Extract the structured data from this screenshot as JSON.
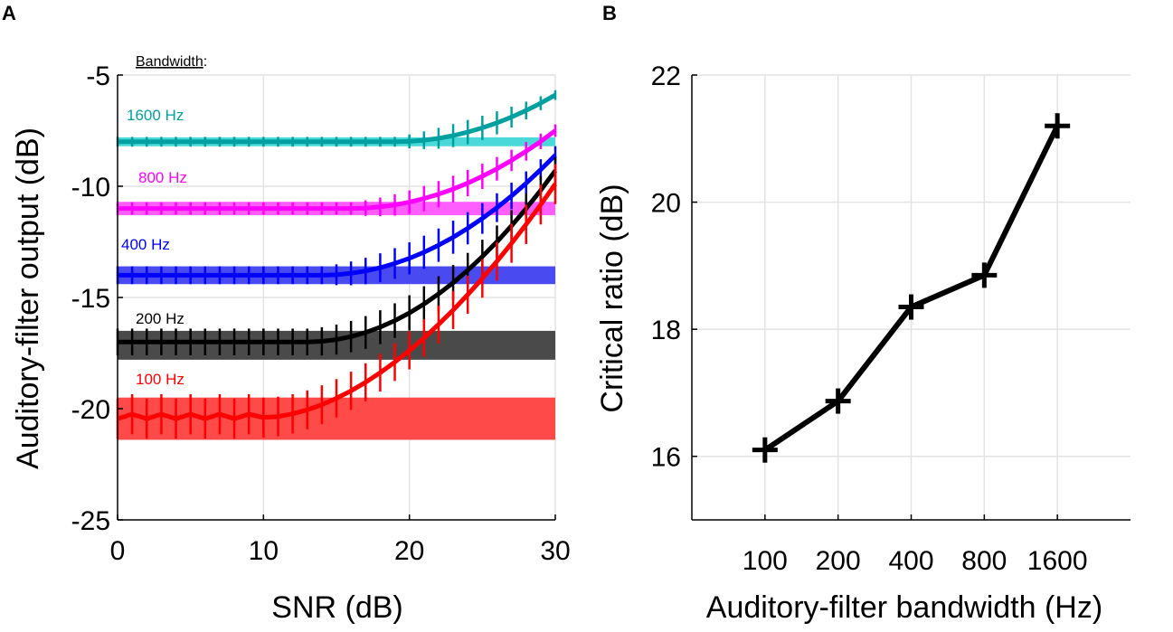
{
  "chart_data": [
    {
      "type": "line",
      "panel_label": "A",
      "xlabel": "SNR (dB)",
      "ylabel": "Auditory-filter output (dB)",
      "xlim": [
        0,
        30
      ],
      "ylim": [
        -25,
        -5
      ],
      "xticks": [
        0,
        10,
        20,
        30
      ],
      "xtick_labels": [
        "0",
        "10",
        "20",
        "30"
      ],
      "yticks": [
        -25,
        -20,
        -15,
        -10,
        -5
      ],
      "ytick_labels": [
        "-25",
        "-20",
        "-15",
        "-10",
        "-5"
      ],
      "grid": true,
      "legend_title": "Bandwidth",
      "legend_title_suffix": ":",
      "series": [
        {
          "name": "1600 Hz",
          "color": "#00A0A0",
          "band_color": "#40D6D6",
          "band_low": -8.2,
          "band_high": -7.8,
          "start": -8.0,
          "end": -5.9,
          "knee": 19,
          "power": 2,
          "err_small": 0.22,
          "err_large": 0.55
        },
        {
          "name": "800 Hz",
          "color": "#FF00FF",
          "band_color": "#FF55FF",
          "band_low": -11.3,
          "band_high": -10.7,
          "start": -11.0,
          "end": -7.5,
          "knee": 16,
          "power": 2,
          "err_small": 0.28,
          "err_large": 0.6
        },
        {
          "name": "400 Hz",
          "color": "#0000FF",
          "band_color": "#4040F0",
          "band_low": -14.4,
          "band_high": -13.6,
          "start": -14.0,
          "end": -8.6,
          "knee": 14,
          "power": 2,
          "err_small": 0.4,
          "err_large": 0.75
        },
        {
          "name": "200 Hz",
          "color": "#000000",
          "band_color": "#404040",
          "band_low": -17.8,
          "band_high": -16.5,
          "start": -17.0,
          "end": -9.3,
          "knee": 13,
          "power": 2,
          "err_small": 0.6,
          "err_large": 0.8
        },
        {
          "name": "100 Hz",
          "color": "#FF0000",
          "band_color": "#FF4040",
          "band_low": -21.4,
          "band_high": -19.5,
          "start": -20.4,
          "end": -9.9,
          "knee": 10,
          "power": 1.8,
          "err_small": 0.9,
          "err_large": 0.85
        }
      ]
    },
    {
      "type": "line",
      "panel_label": "B",
      "xlabel": "Auditory-filter bandwidth (Hz)",
      "ylabel": "Critical ratio (dB)",
      "categories": [
        "100",
        "200",
        "400",
        "800",
        "1600"
      ],
      "values": [
        16.1,
        16.87,
        18.35,
        18.85,
        21.2
      ],
      "xlim": [
        0,
        6
      ],
      "ylim": [
        15,
        22
      ],
      "yticks": [
        16,
        18,
        20,
        22
      ],
      "ytick_labels": [
        "16",
        "18",
        "20",
        "22"
      ],
      "grid": true,
      "color": "#000000",
      "marker": "+"
    }
  ]
}
